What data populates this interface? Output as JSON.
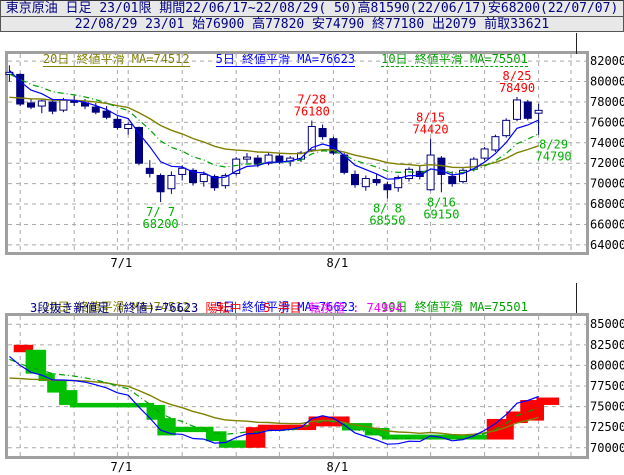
{
  "header": {
    "line1": "東京原油 日足 23/01限 期間22/06/17~22/08/29( 50)高81590(22/06/17)安68200(22/07/07)",
    "line2": "22/08/29 23/01 始76900 高77820 安74790 終77180 出2079 前取33621"
  },
  "ma_legend": [
    {
      "label": "20日 終値平滑 MA=74512",
      "period": 20,
      "value": 74512,
      "color": "#808000",
      "dash": ""
    },
    {
      "label": "5日 終値平滑 MA=76623",
      "period": 5,
      "value": 76623,
      "color": "#0000ff",
      "dash": ""
    },
    {
      "label": "10日 終値平滑 MA=75501",
      "period": 10,
      "value": 75501,
      "color": "#00a000",
      "dash": "6 3 1 3"
    }
  ],
  "break_info": {
    "label": "3段抜き新値足 (終値)=76623",
    "status": "陽転中",
    "count": "5 手目",
    "reversal": "転換値 : 74994"
  },
  "colors": {
    "candle": "#000080",
    "up_fill": "#ffffff",
    "grid": "#a9a9a9",
    "frame": "#a0a0a0",
    "annot_red": "#ff0000",
    "annot_green": "#00b000",
    "break_up": "#ff0000",
    "break_down": "#00c000",
    "header_text": "#000080",
    "axis_text": "#000000"
  },
  "ma_config": [
    {
      "n": 20,
      "seed": 78200,
      "color": "#808000",
      "dash": "",
      "w": 1.4
    },
    {
      "n": 10,
      "seed": 80700,
      "color": "#00a000",
      "dash": "6 3 1 3",
      "w": 1.2
    },
    {
      "n": 5,
      "seed": 81200,
      "color": "#0000ff",
      "dash": "",
      "w": 1.2
    }
  ],
  "chart_data": [
    {
      "type": "candlestick",
      "title": "東京原油 日足 23/01限",
      "ylim": [
        63300,
        82700
      ],
      "yticks": [
        82000,
        80000,
        78000,
        76000,
        74000,
        72000,
        70000,
        68000,
        66000,
        64000
      ],
      "grid_days": [
        1,
        6,
        10,
        11,
        16,
        21,
        25,
        30,
        35,
        39,
        44,
        49,
        52
      ],
      "x_labels": [
        {
          "day": 10,
          "text": "7/1"
        },
        {
          "day": 30,
          "text": "8/1"
        }
      ],
      "candles": [
        [
          "6/17",
          80700,
          81590,
          80000,
          80900
        ],
        [
          "6/20",
          80700,
          80800,
          77600,
          77800
        ],
        [
          "6/21",
          77900,
          78300,
          77300,
          77500
        ],
        [
          "6/22",
          77600,
          78200,
          76900,
          78100
        ],
        [
          "6/23",
          78000,
          78300,
          76800,
          77100
        ],
        [
          "6/24",
          77200,
          78400,
          77000,
          78200
        ],
        [
          "6/27",
          78100,
          78600,
          77600,
          78000
        ],
        [
          "6/28",
          77900,
          78300,
          77300,
          77600
        ],
        [
          "6/29",
          77500,
          77900,
          76800,
          77000
        ],
        [
          "6/30",
          77100,
          77600,
          76300,
          76500
        ],
        [
          "7/1",
          76300,
          76600,
          75300,
          75500
        ],
        [
          "7/4",
          75400,
          76000,
          74800,
          75800
        ],
        [
          "7/5",
          75500,
          75600,
          71800,
          72000
        ],
        [
          "7/6",
          71500,
          72300,
          70600,
          71000
        ],
        [
          "7/7",
          70800,
          71000,
          68200,
          69200
        ],
        [
          "7/8",
          69500,
          71200,
          69000,
          70800
        ],
        [
          "7/11",
          70900,
          71800,
          70300,
          71500
        ],
        [
          "7/12",
          71300,
          71500,
          69800,
          70100
        ],
        [
          "7/13",
          70200,
          71200,
          69700,
          70900
        ],
        [
          "7/14",
          70700,
          70900,
          69300,
          69600
        ],
        [
          "7/15",
          69800,
          71000,
          69500,
          70800
        ],
        [
          "7/19",
          71000,
          72600,
          70800,
          72400
        ],
        [
          "7/20",
          72400,
          73000,
          72000,
          72600
        ],
        [
          "7/21",
          72500,
          72800,
          71600,
          71900
        ],
        [
          "7/22",
          72000,
          73000,
          71800,
          72800
        ],
        [
          "7/25",
          72700,
          72900,
          71900,
          72100
        ],
        [
          "7/26",
          72200,
          72700,
          71700,
          72500
        ],
        [
          "7/27",
          72400,
          73200,
          72100,
          73000
        ],
        [
          "7/28",
          73300,
          76180,
          73100,
          75600
        ],
        [
          "7/29",
          75400,
          75800,
          74300,
          74600
        ],
        [
          "8/1",
          74400,
          74600,
          72800,
          73000
        ],
        [
          "8/2",
          72800,
          73000,
          70900,
          71100
        ],
        [
          "8/3",
          70900,
          71300,
          69600,
          69900
        ],
        [
          "8/4",
          69700,
          70800,
          69300,
          70500
        ],
        [
          "8/5",
          70400,
          70900,
          69800,
          70100
        ],
        [
          "8/8",
          69900,
          70200,
          68550,
          69400
        ],
        [
          "8/9",
          69600,
          70800,
          69200,
          70600
        ],
        [
          "8/10",
          70500,
          71600,
          70200,
          71400
        ],
        [
          "8/12",
          71200,
          71700,
          70400,
          70700
        ],
        [
          "8/15",
          69400,
          74420,
          69300,
          72800
        ],
        [
          "8/16",
          72500,
          72700,
          69150,
          70900
        ],
        [
          "8/17",
          70700,
          71200,
          69700,
          70000
        ],
        [
          "8/18",
          70200,
          71500,
          70000,
          71300
        ],
        [
          "8/19",
          71400,
          72600,
          71200,
          72400
        ],
        [
          "8/22",
          72500,
          73600,
          72300,
          73400
        ],
        [
          "8/23",
          73300,
          74800,
          73100,
          74600
        ],
        [
          "8/24",
          74700,
          76400,
          74500,
          76200
        ],
        [
          "8/25",
          76300,
          78490,
          76100,
          78200
        ],
        [
          "8/26",
          78000,
          78200,
          76200,
          76400
        ],
        [
          "8/29",
          76900,
          77820,
          74790,
          77180
        ]
      ],
      "annotations": [
        {
          "day": 28,
          "value": 76180,
          "pos": "above",
          "color": "#ff0000",
          "dx": 0,
          "lines": [
            "7/28",
            "76180"
          ]
        },
        {
          "day": 39,
          "value": 74420,
          "pos": "above",
          "color": "#ff0000",
          "dx": 0,
          "lines": [
            "8/15",
            "74420"
          ]
        },
        {
          "day": 47,
          "value": 78490,
          "pos": "above",
          "color": "#ff0000",
          "dx": 0,
          "lines": [
            "8/25",
            "78490"
          ]
        },
        {
          "day": 14,
          "value": 68200,
          "pos": "below",
          "color": "#00b000",
          "dx": 0,
          "lines": [
            "7/ 7",
            "68200"
          ]
        },
        {
          "day": 35,
          "value": 68550,
          "pos": "below",
          "color": "#00b000",
          "dx": 0,
          "lines": [
            "8/ 8",
            "68550"
          ]
        },
        {
          "day": 40,
          "value": 69150,
          "pos": "below",
          "color": "#00b000",
          "dx": 0,
          "lines": [
            "8/16",
            "69150"
          ]
        },
        {
          "day": 49,
          "value": 74790,
          "pos": "below",
          "color": "#00b000",
          "dx": 15,
          "lines": [
            "8/29",
            "74790"
          ]
        }
      ]
    },
    {
      "type": "break",
      "title": "3段抜き新値足",
      "ylim": [
        69000,
        86000
      ],
      "yticks": [
        85000,
        82500,
        80000,
        77500,
        75000,
        72500,
        70000
      ],
      "grid_days": [
        1,
        6,
        10,
        11,
        16,
        21,
        25,
        30,
        35,
        39,
        44,
        49,
        52
      ],
      "x_labels": [
        {
          "day": 10,
          "text": "7/1"
        },
        {
          "day": 30,
          "text": "8/1"
        }
      ],
      "segments": [
        {
          "d0": 0.7,
          "d1": 1.8,
          "lo": 81600,
          "hi": 82500,
          "dir": "up"
        },
        {
          "d0": 1.8,
          "d1": 3.0,
          "lo": 79000,
          "hi": 81900,
          "dir": "down"
        },
        {
          "d0": 3.0,
          "d1": 3.8,
          "lo": 78100,
          "hi": 79050,
          "dir": "down"
        },
        {
          "d0": 3.8,
          "d1": 4.9,
          "lo": 76700,
          "hi": 78200,
          "dir": "down"
        },
        {
          "d0": 4.9,
          "d1": 5.9,
          "lo": 75200,
          "hi": 77000,
          "dir": "down"
        },
        {
          "d0": 5.9,
          "d1": 13.0,
          "lo": 74900,
          "hi": 75450,
          "dir": "down"
        },
        {
          "d0": 13.0,
          "d1": 14.0,
          "lo": 73400,
          "hi": 75200,
          "dir": "down"
        },
        {
          "d0": 14.0,
          "d1": 15.0,
          "lo": 71500,
          "hi": 73600,
          "dir": "down"
        },
        {
          "d0": 15.0,
          "d1": 18.5,
          "lo": 71900,
          "hi": 72550,
          "dir": "down"
        },
        {
          "d0": 18.5,
          "d1": 19.7,
          "lo": 70800,
          "hi": 72000,
          "dir": "down"
        },
        {
          "d0": 19.7,
          "d1": 22.2,
          "lo": 70000,
          "hi": 70900,
          "dir": "down"
        },
        {
          "d0": 22.2,
          "d1": 23.3,
          "lo": 70000,
          "hi": 72500,
          "dir": "up"
        },
        {
          "d0": 23.3,
          "d1": 28.0,
          "lo": 72150,
          "hi": 72800,
          "dir": "up"
        },
        {
          "d0": 28.0,
          "d1": 31.1,
          "lo": 72600,
          "hi": 73800,
          "dir": "up"
        },
        {
          "d0": 31.1,
          "d1": 33.2,
          "lo": 72100,
          "hi": 73000,
          "dir": "down"
        },
        {
          "d0": 33.2,
          "d1": 34.8,
          "lo": 71500,
          "hi": 72400,
          "dir": "down"
        },
        {
          "d0": 34.8,
          "d1": 44.5,
          "lo": 71000,
          "hi": 71600,
          "dir": "down"
        },
        {
          "d0": 44.5,
          "d1": 46.3,
          "lo": 71000,
          "hi": 73500,
          "dir": "up"
        },
        {
          "d0": 46.3,
          "d1": 47.6,
          "lo": 73000,
          "hi": 74400,
          "dir": "up"
        },
        {
          "d0": 47.6,
          "d1": 49.1,
          "lo": 73300,
          "hi": 75800,
          "dir": "up"
        },
        {
          "d0": 49.1,
          "d1": 50.5,
          "lo": 75200,
          "hi": 76100,
          "dir": "up"
        }
      ]
    }
  ]
}
